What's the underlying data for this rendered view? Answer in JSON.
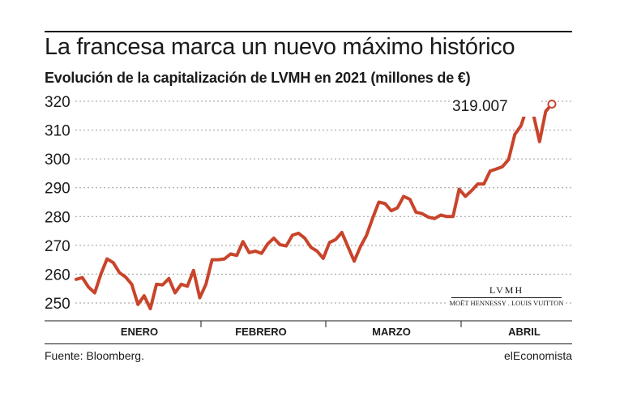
{
  "title": "La francesa marca un nuevo máximo histórico",
  "subtitle": "Evolución de la capitalización de LVMH en 2021 (millones de €)",
  "source": "Fuente: Bloomberg.",
  "publisher": "elEconomista",
  "logo": {
    "top": "LVMH",
    "bottom": "MOËT HENNESSY . LOUIS VUITTON"
  },
  "colors": {
    "line": "#c8442b",
    "grid": "#9a9a9a",
    "text": "#1a1a1a"
  },
  "chart_data": {
    "type": "line",
    "title": "La francesa marca un nuevo máximo histórico",
    "subtitle": "Evolución de la capitalización de LVMH en 2021 (millones de €)",
    "xlabel": "",
    "ylabel": "",
    "ylim": [
      245,
      322
    ],
    "yticks": [
      250,
      260,
      270,
      280,
      290,
      300,
      310,
      320
    ],
    "grid": true,
    "month_labels": [
      "ENERO",
      "FEBRERO",
      "MARZO",
      "ABRIL"
    ],
    "annotation": {
      "label": "319.007",
      "value": 319.007
    },
    "series": [
      {
        "values": [
          258.2,
          258.8,
          255.5,
          253.5,
          260.0,
          265.3,
          264.0,
          260.5,
          259.0,
          256.5,
          249.5,
          252.5,
          248.0,
          256.5,
          256.3,
          258.5,
          253.5,
          256.5,
          255.8,
          261.3,
          251.8,
          256.5,
          265.0,
          265.0,
          265.3,
          267.0,
          266.5,
          271.3,
          267.5,
          268.0,
          267.2,
          270.5,
          272.5,
          270.2,
          269.8,
          273.5,
          274.2,
          272.5,
          269.3,
          268.0,
          265.5,
          271.0,
          272.0,
          274.5,
          269.5,
          264.5,
          269.5,
          273.5,
          279.5,
          285.0,
          284.5,
          282.0,
          283.0,
          287.0,
          286.0,
          281.5,
          281.0,
          279.8,
          279.3,
          280.5,
          280.0,
          280.0,
          289.5,
          287.0,
          289.0,
          291.3,
          291.3,
          295.8,
          296.5,
          297.3,
          299.8,
          308.5,
          311.5,
          318.0,
          315.5,
          306.0,
          316.5,
          319.007
        ]
      }
    ]
  }
}
